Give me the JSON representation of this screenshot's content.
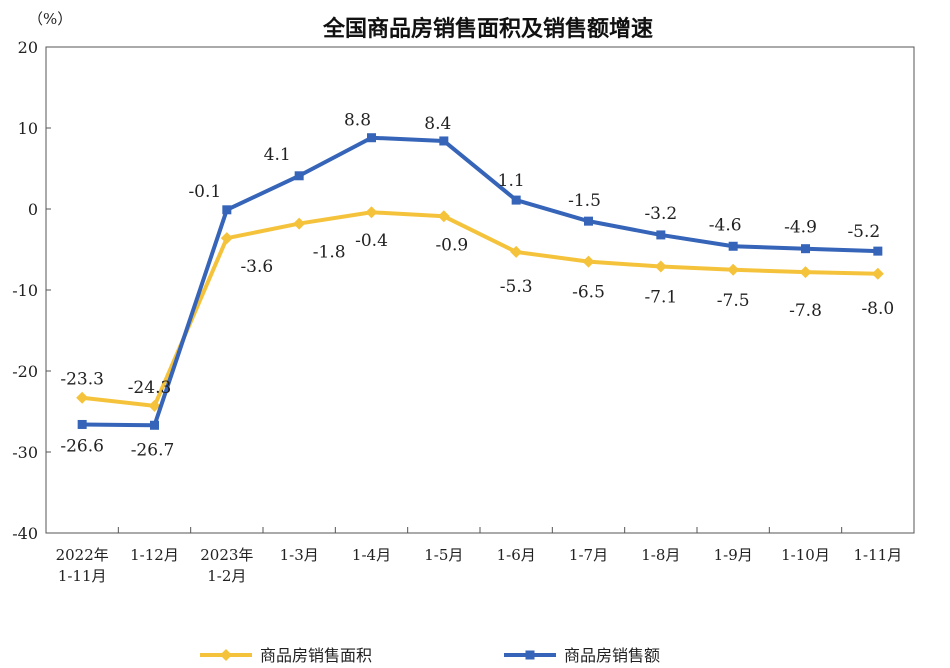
{
  "chart_data": {
    "type": "line",
    "title": "全国商品房销售面积及销售额增速",
    "unit_label": "（%）",
    "categories": [
      [
        "2022年",
        "1-11月"
      ],
      [
        "1-12月"
      ],
      [
        "2023年",
        "1-2月"
      ],
      [
        "1-3月"
      ],
      [
        "1-4月"
      ],
      [
        "1-5月"
      ],
      [
        "1-6月"
      ],
      [
        "1-7月"
      ],
      [
        "1-8月"
      ],
      [
        "1-9月"
      ],
      [
        "1-10月"
      ],
      [
        "1-11月"
      ]
    ],
    "ylim": [
      -40,
      20
    ],
    "yticks": [
      20,
      10,
      0,
      -10,
      -20,
      -30,
      -40
    ],
    "grid": false,
    "legend_position": "bottom",
    "series": [
      {
        "name": "商品房销售面积",
        "color": "#f5c33b",
        "marker": "diamond",
        "values": [
          -23.3,
          -24.3,
          -3.6,
          -1.8,
          -0.4,
          -0.9,
          -5.3,
          -6.5,
          -7.1,
          -7.5,
          -7.8,
          -8.0
        ],
        "labels": [
          "-23.3",
          "-24.3",
          "-3.6",
          "-1.8",
          "-0.4",
          "-0.9",
          "-5.3",
          "-6.5",
          "-7.1",
          "-7.5",
          "-7.8",
          "-8.0"
        ]
      },
      {
        "name": "商品房销售额",
        "color": "#3564b8",
        "marker": "square",
        "values": [
          -26.6,
          -26.7,
          -0.1,
          4.1,
          8.8,
          8.4,
          1.1,
          -1.5,
          -3.2,
          -4.6,
          -4.9,
          -5.2
        ],
        "labels": [
          "-26.6",
          "-26.7",
          "-0.1",
          "4.1",
          "8.8",
          "8.4",
          "1.1",
          "-1.5",
          "-3.2",
          "-4.6",
          "-4.9",
          "-5.2"
        ]
      }
    ]
  }
}
